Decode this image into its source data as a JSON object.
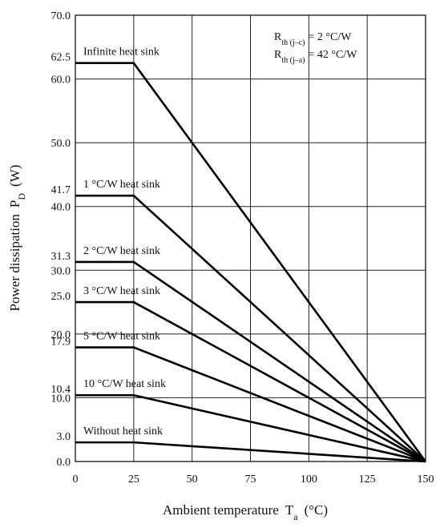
{
  "chart_data": {
    "type": "line",
    "x_label": {
      "text": "Ambient temperature",
      "symbol": "T",
      "subscript": "a",
      "unit": "(°C)"
    },
    "y_label": {
      "text": "Power dissipation",
      "symbol": "P",
      "subscript": "D",
      "unit": "(W)"
    },
    "annotations": [
      {
        "symbol": "R",
        "subscript": "th (j–c)",
        "text": "= 2 °C/W"
      },
      {
        "symbol": "R",
        "subscript": "th (j–a)",
        "text": "= 42 °C/W"
      }
    ],
    "x": [
      0,
      25,
      150
    ],
    "series": [
      {
        "name": "Infinite heat sink",
        "color": "#000000",
        "values": [
          62.5,
          62.5,
          0
        ],
        "value_labels": [
          "62.5",
          null,
          null
        ]
      },
      {
        "name": "1 °C/W heat sink",
        "color": "#000000",
        "values": [
          41.7,
          41.7,
          0
        ],
        "value_labels": [
          "41.7",
          null,
          null
        ]
      },
      {
        "name": "2 °C/W heat sink",
        "color": "#000000",
        "values": [
          31.3,
          31.3,
          0
        ],
        "value_labels": [
          "31.3",
          null,
          null
        ]
      },
      {
        "name": "3 °C/W heat sink",
        "color": "#000000",
        "values": [
          25,
          25,
          0
        ],
        "value_labels": [
          "25.0",
          null,
          null
        ]
      },
      {
        "name": "5 °C/W heat sink",
        "color": "#000000",
        "values": [
          17.9,
          17.9,
          0
        ],
        "value_labels": [
          "17.9",
          null,
          null
        ]
      },
      {
        "name": "10 °C/W heat sink",
        "color": "#000000",
        "values": [
          10.4,
          10.4,
          0
        ],
        "value_labels": [
          "10.4",
          null,
          null
        ]
      },
      {
        "name": "Without heat sink",
        "color": "#000000",
        "values": [
          3,
          3,
          0
        ],
        "value_labels": [
          "3.0",
          null,
          null
        ]
      }
    ],
    "xlim": [
      0,
      150
    ],
    "xticks": [
      0,
      25,
      50,
      75,
      100,
      125,
      150
    ],
    "ylim": [
      0,
      70
    ],
    "yticks": [
      {
        "value": 0,
        "label": "0.0"
      },
      {
        "value": 10,
        "label": "10.0"
      },
      {
        "value": 20,
        "label": "20.0"
      },
      {
        "value": 30,
        "label": "30.0"
      },
      {
        "value": 40,
        "label": "40.0"
      },
      {
        "value": 50,
        "label": "50.0"
      },
      {
        "value": 60,
        "label": "60.0"
      },
      {
        "value": 70,
        "label": "70.0"
      }
    ],
    "grid": true
  }
}
